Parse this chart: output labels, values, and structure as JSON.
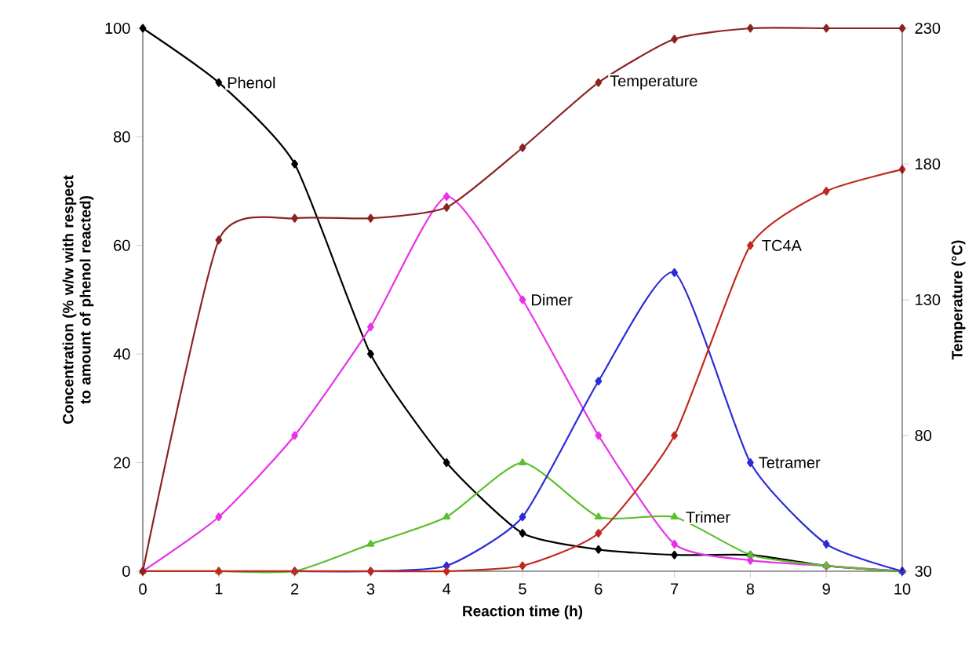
{
  "chart_data": {
    "type": "line",
    "xlabel": "Reaction time (h)",
    "ylabel": "Concentration (% w/w with respect to amount of phenol reacted)",
    "y2label": "Temperature (°C)",
    "x": [
      0,
      1,
      2,
      3,
      4,
      5,
      6,
      7,
      8,
      9,
      10
    ],
    "xlim": [
      0,
      10
    ],
    "xticks": [
      0,
      1,
      2,
      3,
      4,
      5,
      6,
      7,
      8,
      9,
      10
    ],
    "ylim": [
      0,
      100
    ],
    "yticks": [
      0,
      20,
      40,
      60,
      80,
      100
    ],
    "y2lim": [
      30,
      230
    ],
    "y2ticks": [
      30,
      80,
      130,
      180,
      230
    ],
    "legend": false,
    "grid": false,
    "series": [
      {
        "name": "Phenol",
        "color": "#000000",
        "marker": "diamond",
        "values": [
          100,
          90,
          75,
          40,
          20,
          7,
          4,
          3,
          3,
          1,
          0
        ]
      },
      {
        "name": "Dimer",
        "color": "#e833e8",
        "marker": "diamond",
        "values": [
          0,
          10,
          25,
          45,
          69,
          50,
          25,
          5,
          2,
          1,
          0
        ]
      },
      {
        "name": "Trimer",
        "color": "#5bbf2e",
        "marker": "triangle",
        "values": [
          0,
          0,
          0,
          5,
          10,
          20,
          10,
          10,
          3,
          1,
          0
        ]
      },
      {
        "name": "Tetramer",
        "color": "#2b2bd9",
        "marker": "diamond",
        "values": [
          null,
          null,
          0,
          0,
          1,
          10,
          35,
          55,
          20,
          5,
          0
        ]
      },
      {
        "name": "TC4A",
        "color": "#c0291f",
        "marker": "diamond",
        "values": [
          0,
          0,
          0,
          0,
          0,
          1,
          7,
          25,
          60,
          70,
          74
        ]
      },
      {
        "name": "Temperature",
        "color": "#8b2323",
        "marker": "diamond",
        "axis": "y2",
        "values": [
          30,
          152,
          160,
          160,
          164,
          186,
          210,
          226,
          230,
          230,
          230
        ]
      }
    ]
  }
}
